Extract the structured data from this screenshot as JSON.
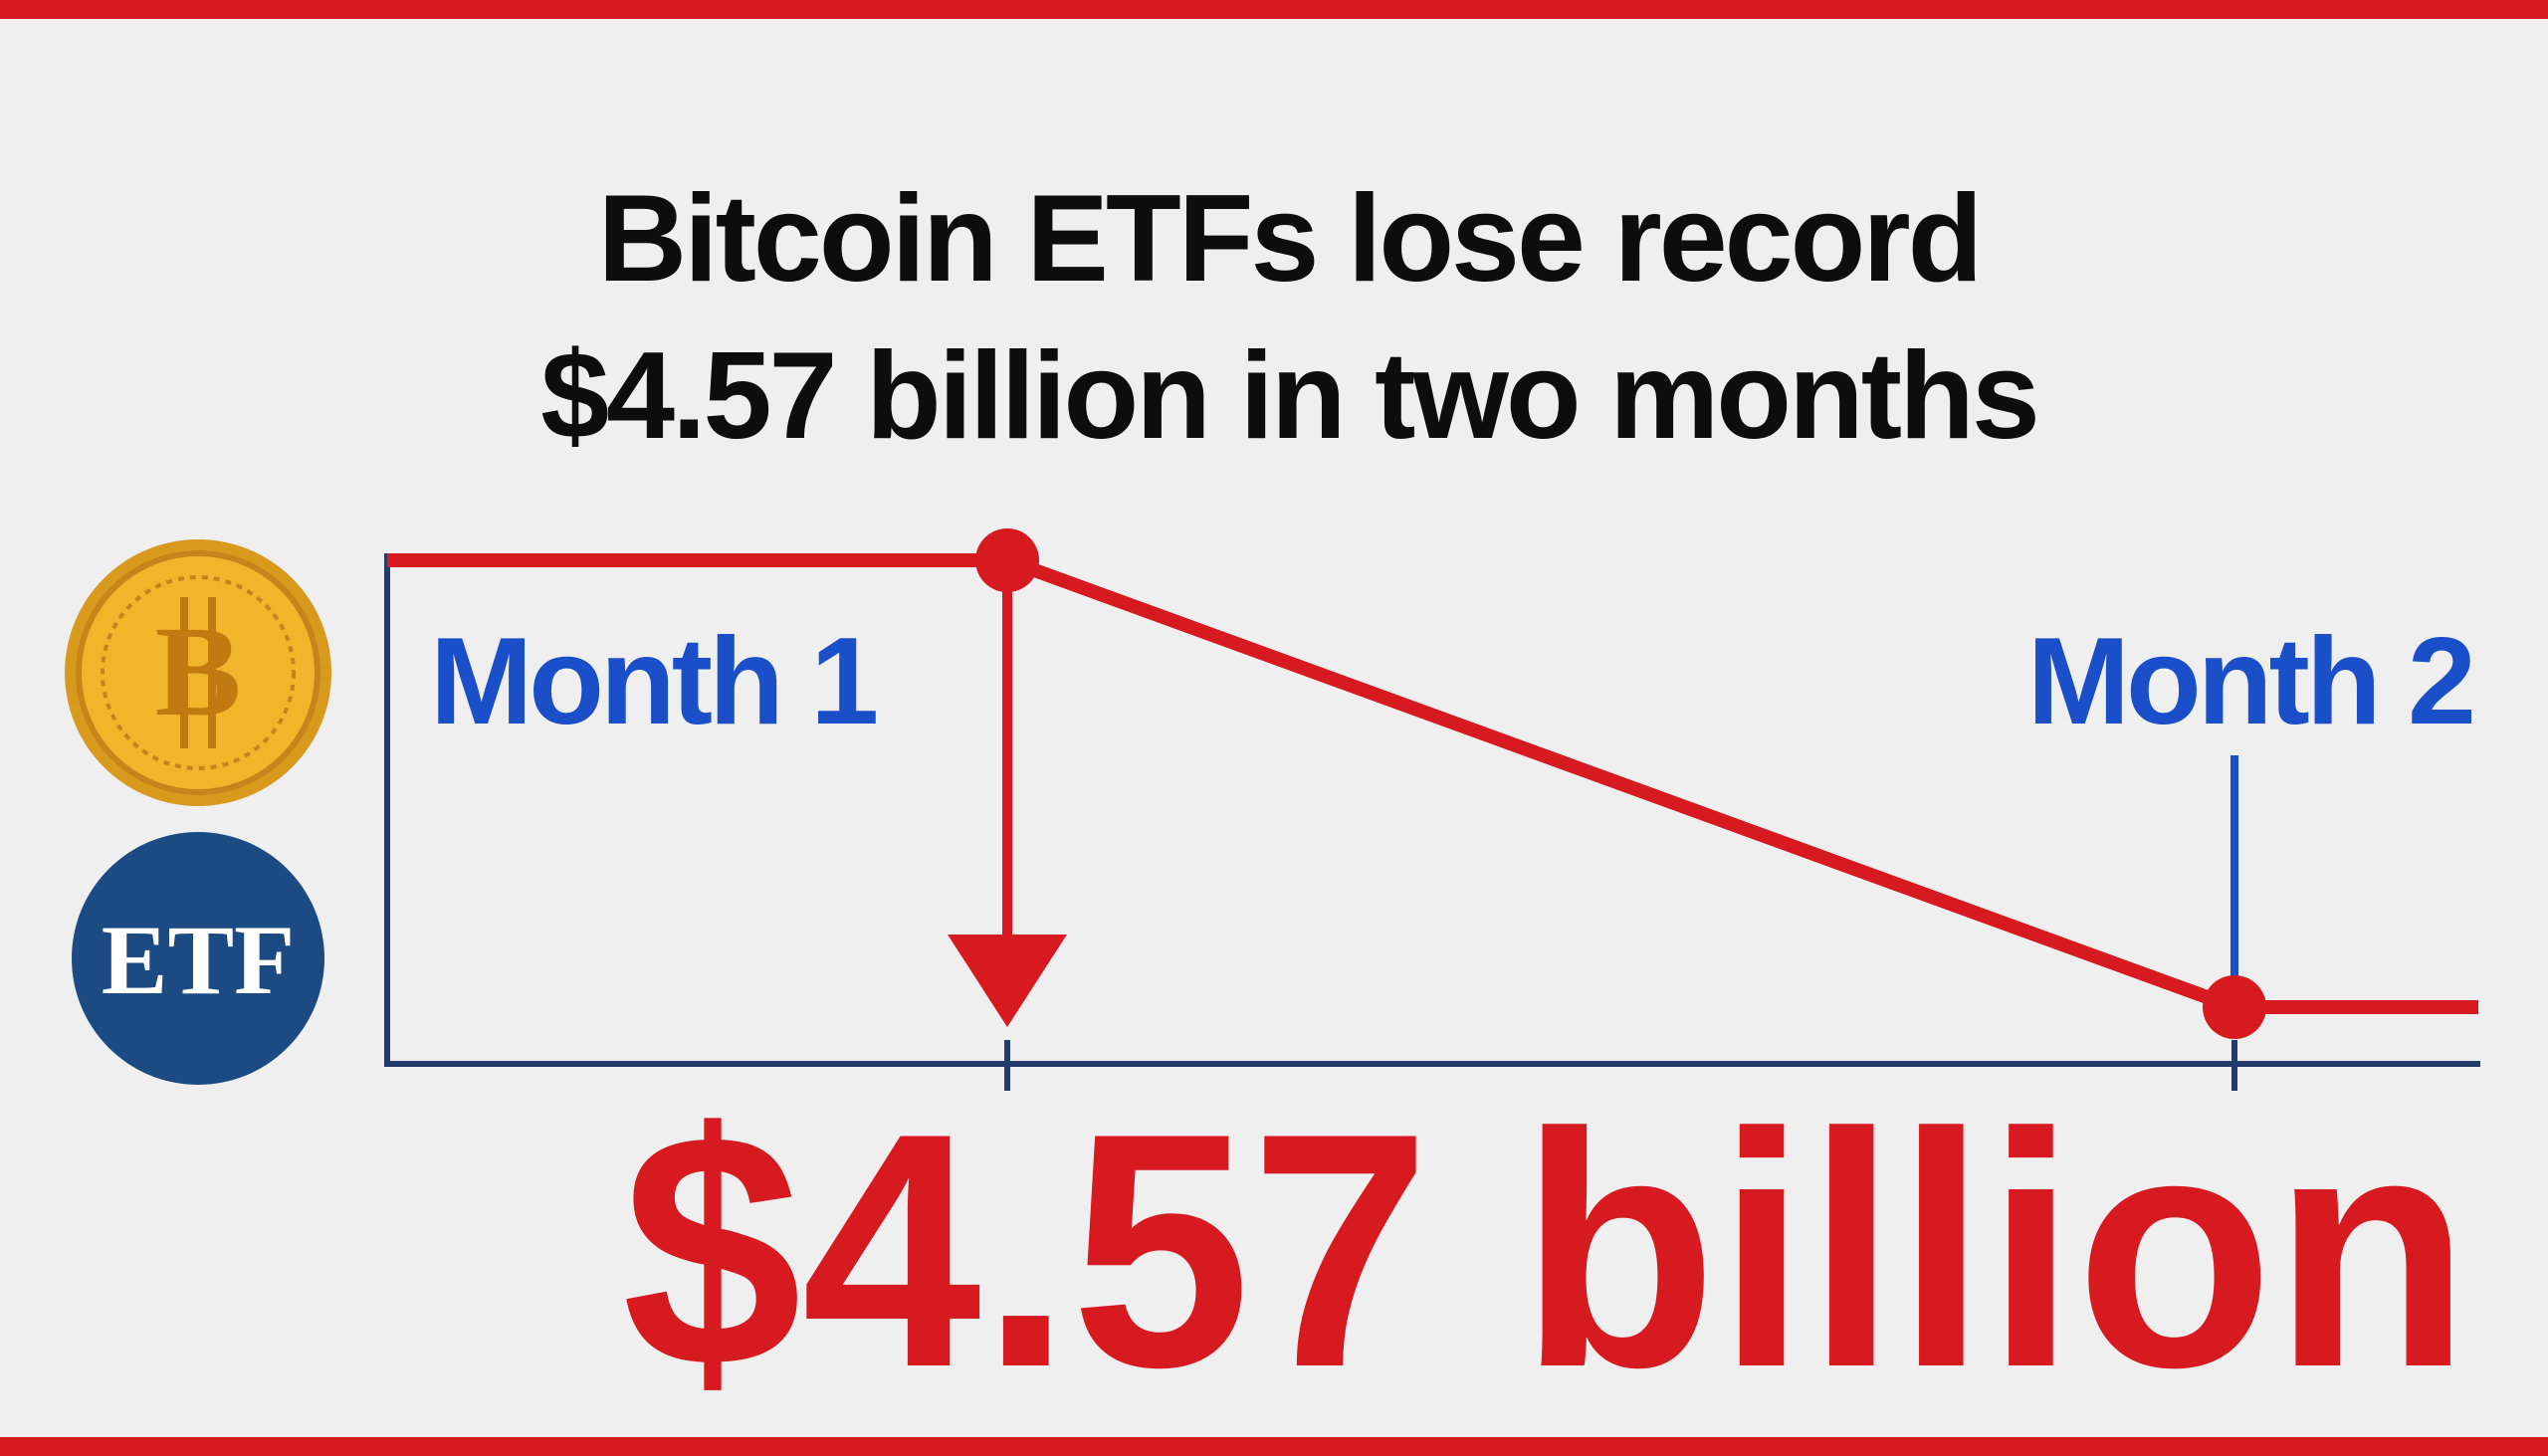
{
  "header": {
    "title_lines": [
      "Bitcoin ETFs lose record",
      "$4.57 billion in two months"
    ]
  },
  "graphic": {
    "labels": [
      "Month 1",
      "Month 2"
    ],
    "logo_text": "ETF"
  },
  "headline_figure": "$4.57 billion"
}
